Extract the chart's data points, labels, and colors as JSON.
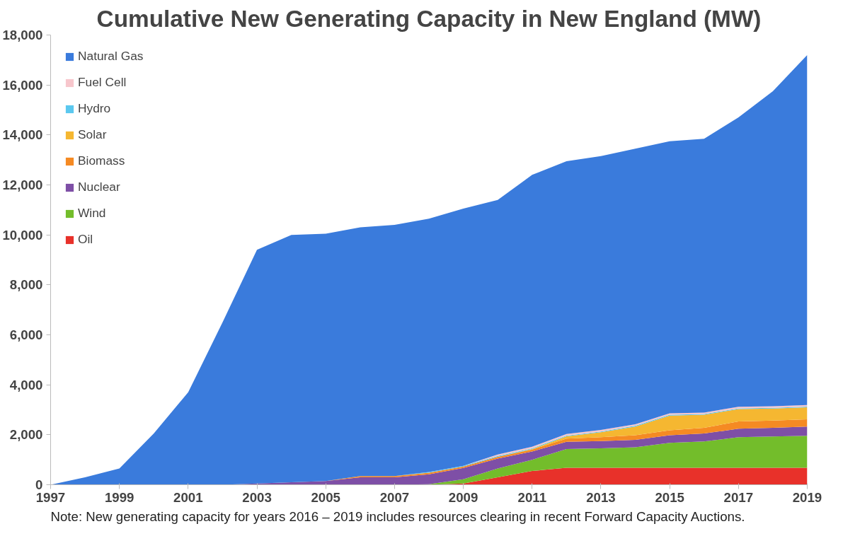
{
  "chart_data": {
    "type": "area",
    "stacked": true,
    "title": "Cumulative New Generating Capacity in New England (MW)",
    "x": [
      1997,
      1998,
      1999,
      2000,
      2001,
      2002,
      2003,
      2004,
      2005,
      2006,
      2007,
      2008,
      2009,
      2010,
      2011,
      2012,
      2013,
      2014,
      2015,
      2016,
      2017,
      2018,
      2019
    ],
    "series": [
      {
        "name": "Oil",
        "color": "#e8312a",
        "values": [
          0,
          0,
          0,
          0,
          0,
          0,
          0,
          0,
          0,
          0,
          0,
          0,
          50,
          300,
          550,
          680,
          680,
          680,
          680,
          680,
          680,
          680,
          680
        ]
      },
      {
        "name": "Wind",
        "color": "#73bd2b",
        "values": [
          0,
          0,
          0,
          0,
          0,
          0,
          0,
          0,
          0,
          0,
          0,
          20,
          170,
          350,
          450,
          750,
          780,
          820,
          1000,
          1050,
          1220,
          1250,
          1280
        ]
      },
      {
        "name": "Nuclear",
        "color": "#7e4fa6",
        "values": [
          0,
          0,
          0,
          0,
          0,
          0,
          50,
          100,
          150,
          300,
          300,
          400,
          450,
          400,
          330,
          290,
          290,
          300,
          300,
          320,
          340,
          350,
          370
        ]
      },
      {
        "name": "Biomass",
        "color": "#f58a23",
        "values": [
          0,
          0,
          0,
          0,
          0,
          0,
          0,
          0,
          0,
          50,
          50,
          60,
          60,
          70,
          80,
          130,
          150,
          180,
          200,
          230,
          290,
          290,
          290
        ]
      },
      {
        "name": "Solar",
        "color": "#f5b731",
        "values": [
          0,
          0,
          0,
          0,
          0,
          0,
          0,
          0,
          0,
          0,
          0,
          0,
          0,
          0,
          20,
          90,
          200,
          350,
          590,
          520,
          500,
          480,
          480
        ]
      },
      {
        "name": "Hydro",
        "color": "#5bc8ef",
        "values": [
          0,
          0,
          0,
          0,
          0,
          0,
          0,
          0,
          0,
          0,
          0,
          30,
          30,
          30,
          30,
          30,
          30,
          30,
          30,
          30,
          30,
          30,
          30
        ]
      },
      {
        "name": "Fuel Cell",
        "color": "#f7c6cc",
        "values": [
          0,
          0,
          0,
          0,
          0,
          0,
          0,
          0,
          0,
          0,
          0,
          0,
          0,
          60,
          60,
          60,
          60,
          60,
          60,
          60,
          60,
          60,
          60
        ]
      },
      {
        "name": "Natural Gas",
        "color": "#3a7bdc",
        "values": [
          0,
          300,
          650,
          2050,
          3700,
          6500,
          9350,
          9900,
          9900,
          9950,
          10050,
          10140,
          10290,
          10190,
          10880,
          10920,
          10960,
          11030,
          10890,
          10960,
          11580,
          12610,
          14010
        ]
      }
    ],
    "xlim": [
      1997,
      2019
    ],
    "xticks": [
      1997,
      1999,
      2001,
      2003,
      2005,
      2007,
      2009,
      2011,
      2013,
      2015,
      2017,
      2019
    ],
    "ylim": [
      0,
      18000
    ],
    "yticks": [
      {
        "value": 0,
        "label": "0"
      },
      {
        "value": 2000,
        "label": "2,000"
      },
      {
        "value": 4000,
        "label": "4,000"
      },
      {
        "value": 6000,
        "label": "6,000"
      },
      {
        "value": 8000,
        "label": "8,000"
      },
      {
        "value": 10000,
        "label": "10,000"
      },
      {
        "value": 12000,
        "label": "12,000"
      },
      {
        "value": 14000,
        "label": "14,000"
      },
      {
        "value": 16000,
        "label": "16,000"
      },
      {
        "value": 18000,
        "label": "18,000"
      }
    ],
    "grid": false,
    "legend": "top left",
    "annotations": [
      "Note: New generating capacity for years 2016 – 2019 includes resources clearing in recent Forward Capacity Auctions."
    ]
  }
}
